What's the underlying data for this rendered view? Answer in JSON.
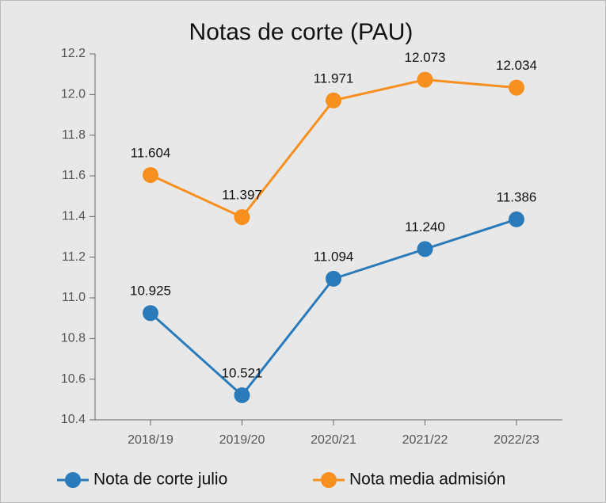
{
  "chart_data": {
    "type": "line",
    "title": "Notas de corte (PAU)",
    "categories": [
      "2018/19",
      "2019/20",
      "2020/21",
      "2021/22",
      "2022/23"
    ],
    "series": [
      {
        "name": "Nota de corte julio",
        "color": "#2b7bba",
        "values": [
          10.925,
          10.521,
          11.094,
          11.24,
          11.386
        ],
        "value_labels": [
          "10.925",
          "10.521",
          "11.094",
          "11.240",
          "11.386"
        ]
      },
      {
        "name": "Nota media admisión",
        "color": "#f7901e",
        "values": [
          11.604,
          11.397,
          11.971,
          12.073,
          12.034
        ],
        "value_labels": [
          "11.604",
          "11.397",
          "11.971",
          "12.073",
          "12.034"
        ]
      }
    ],
    "ylim": [
      10.4,
      12.2
    ],
    "yticks": [
      10.4,
      10.6,
      10.8,
      {
        "value": 11,
        "label": "11.0"
      },
      11.2,
      11.4,
      11.6,
      11.8,
      {
        "value": 12,
        "label": "12.0"
      },
      12.2
    ],
    "legend": "bottom"
  }
}
